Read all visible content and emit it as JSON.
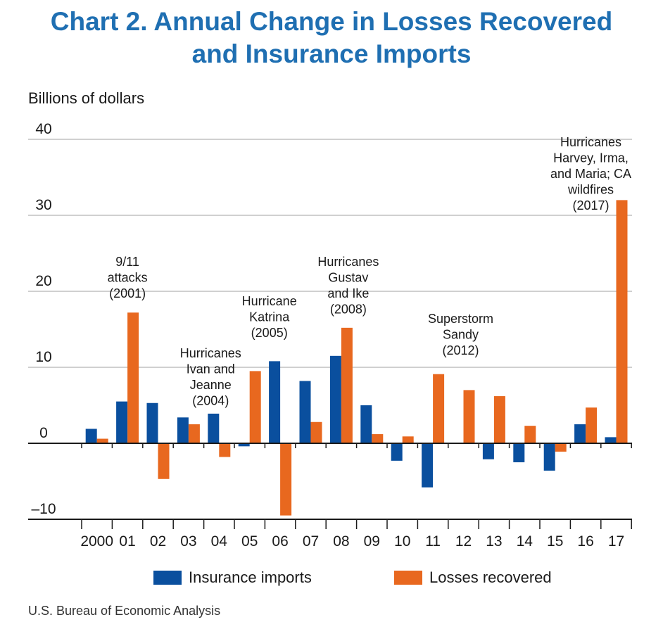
{
  "title": {
    "line1": "Chart 2. Annual Change in Losses Recovered",
    "line2": "and Insurance Imports"
  },
  "source": "U.S. Bureau of Economic Analysis",
  "colors": {
    "title": "#1f6fb2",
    "insurance_imports": "#0a4f9e",
    "losses_recovered": "#e8681f",
    "gridline": "#b3b3b3",
    "axis": "#1a1a1a"
  },
  "chart_data": {
    "type": "bar",
    "ylabel": "Billions of dollars",
    "xlabel": "",
    "ylim": [
      -10,
      40
    ],
    "yticks": [
      -10,
      0,
      10,
      20,
      30,
      40
    ],
    "ytick_labels": [
      "–10",
      "0",
      "10",
      "20",
      "30",
      "40"
    ],
    "grid": true,
    "legend_position": "bottom",
    "categories": [
      "2000",
      "01",
      "02",
      "03",
      "04",
      "05",
      "06",
      "07",
      "08",
      "09",
      "10",
      "11",
      "12",
      "13",
      "14",
      "15",
      "16",
      "17"
    ],
    "series": [
      {
        "name": "Insurance imports",
        "color": "#0a4f9e",
        "values": [
          1.9,
          5.5,
          5.3,
          3.4,
          3.9,
          -0.4,
          10.8,
          8.2,
          11.5,
          5.0,
          -2.3,
          -5.8,
          0,
          -2.1,
          -2.5,
          -3.6,
          2.5,
          0.8
        ]
      },
      {
        "name": "Losses recovered",
        "color": "#e8681f",
        "values": [
          0.6,
          17.2,
          -4.7,
          2.5,
          -1.8,
          9.5,
          -9.5,
          2.8,
          15.2,
          1.2,
          0.9,
          9.1,
          7.0,
          6.2,
          2.3,
          -1.1,
          4.7,
          32.0
        ]
      }
    ],
    "annotations": [
      {
        "category_index": 1,
        "lines": [
          "9/11",
          "attacks",
          "(2001)"
        ]
      },
      {
        "category_index": 4,
        "lines": [
          "Hurricanes",
          "Ivan and",
          "Jeanne",
          "(2004)"
        ]
      },
      {
        "category_index": 5,
        "lines": [
          "Hurricane",
          "Katrina",
          "(2005)"
        ]
      },
      {
        "category_index": 8,
        "lines": [
          "Hurricanes",
          "Gustav",
          "and Ike",
          "(2008)"
        ]
      },
      {
        "category_index": 12,
        "lines": [
          "Superstorm",
          "Sandy",
          "(2012)"
        ]
      },
      {
        "category_index": 17,
        "lines": [
          "Hurricanes",
          "Harvey, Irma,",
          "and Maria; CA",
          "wildfires",
          "(2017)"
        ]
      }
    ]
  }
}
